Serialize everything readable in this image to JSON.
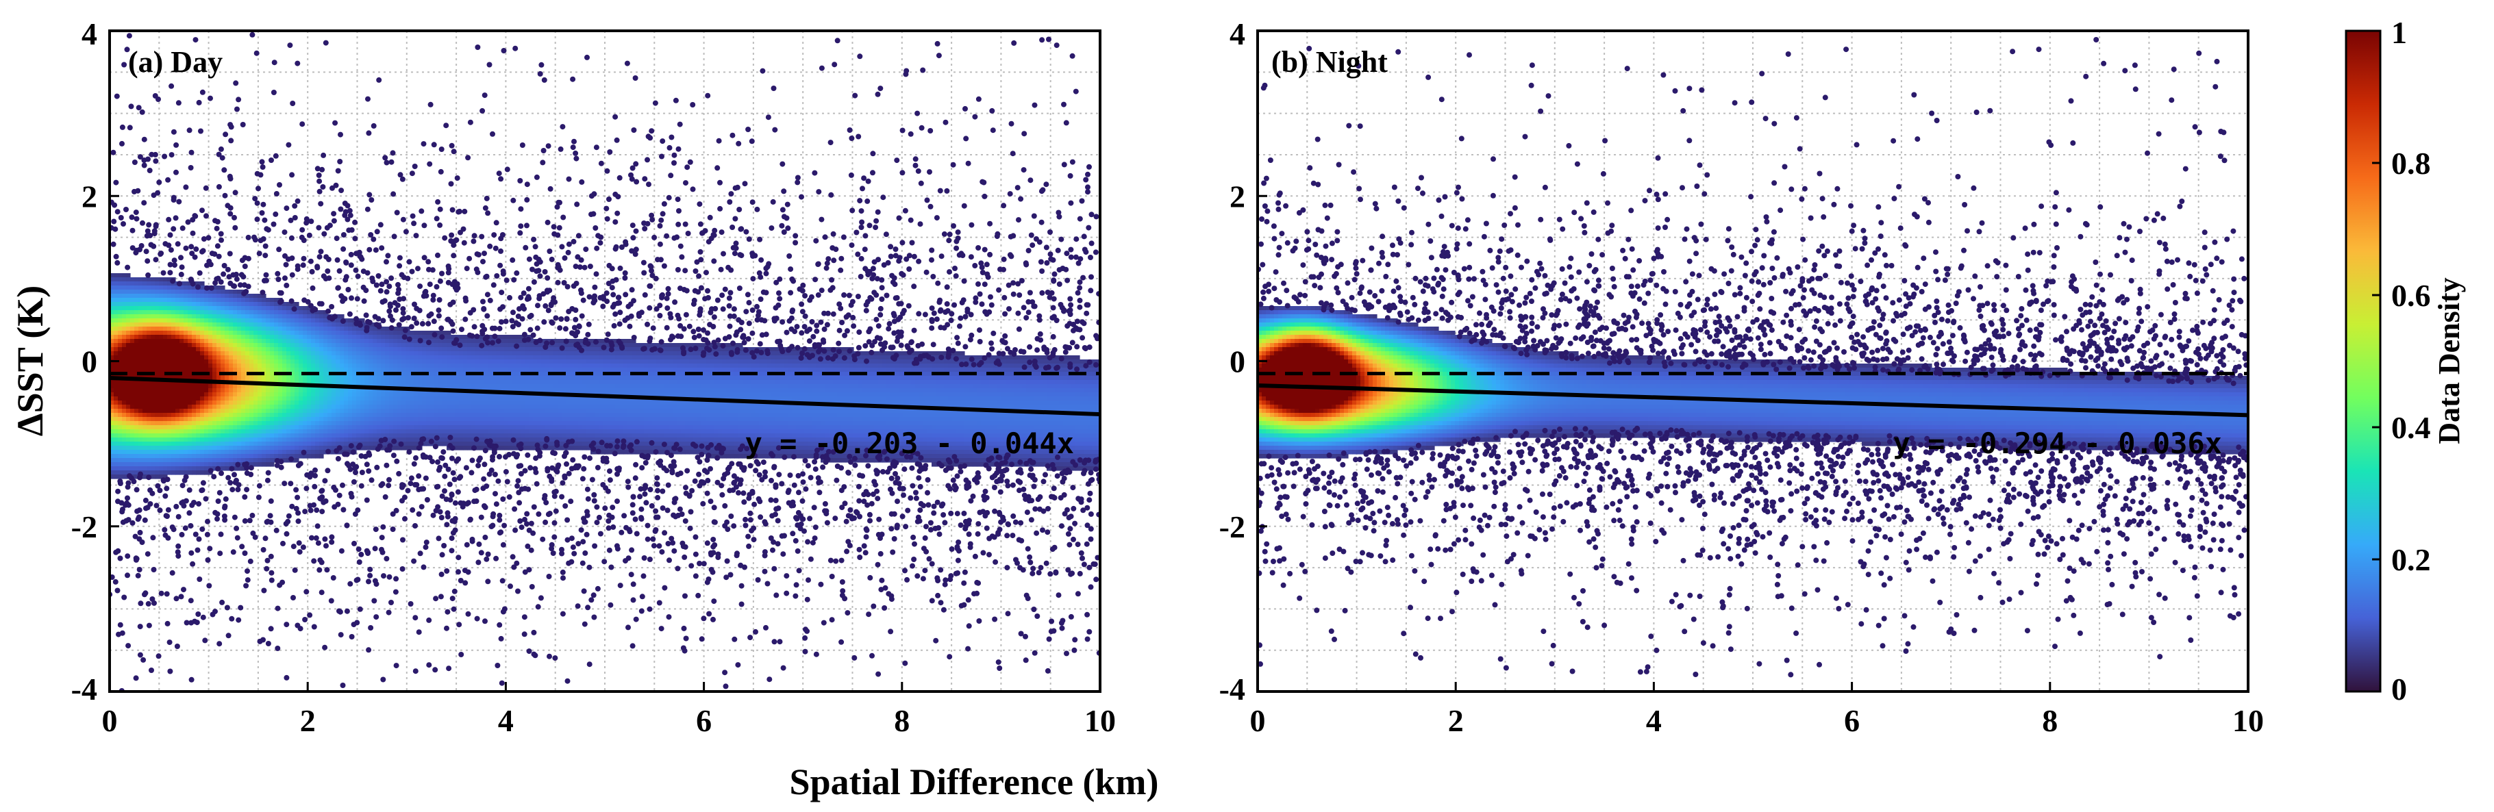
{
  "chart_data": [
    {
      "type": "scatter",
      "panel_label": "(a) Day",
      "xlabel": "Spatial Difference (km)",
      "ylabel": "ΔSST (K)",
      "xlim": [
        0,
        10
      ],
      "ylim": [
        -4,
        4
      ],
      "xticks": [
        "0",
        "2",
        "4",
        "6",
        "8",
        "10"
      ],
      "yticks": [
        "4",
        "2",
        "0",
        "-2",
        "-4"
      ],
      "grid": true,
      "reference_line_y": -0.15,
      "fit": {
        "intercept": -0.203,
        "slope": -0.044,
        "equation": "y = -0.203 - 0.044x"
      },
      "density_peak": {
        "x": 0.5,
        "y": -0.15
      },
      "spread_sd_near_zero": 0.9,
      "spread_sd_far": 0.7,
      "outlier_extent": [
        -3.9,
        3.9
      ]
    },
    {
      "type": "scatter",
      "panel_label": "(b) Night",
      "xlabel": "Spatial Difference (km)",
      "ylabel": "",
      "xlim": [
        0,
        10
      ],
      "ylim": [
        -4,
        4
      ],
      "xticks": [
        "0",
        "2",
        "4",
        "6",
        "8",
        "10"
      ],
      "yticks": [
        "4",
        "2",
        "0",
        "-2",
        "-4"
      ],
      "grid": true,
      "reference_line_y": -0.15,
      "fit": {
        "intercept": -0.294,
        "slope": -0.036,
        "equation": "y = -0.294 - 0.036x"
      },
      "density_peak": {
        "x": 0.5,
        "y": -0.15
      },
      "spread_sd_near_zero": 0.55,
      "spread_sd_far": 0.5,
      "outlier_extent": [
        -3.8,
        3.9
      ]
    }
  ],
  "shared_xlabel": "Spatial Difference (km)",
  "colorbar": {
    "label": "Data Density",
    "range": [
      0,
      1
    ],
    "ticks": [
      "1",
      "0.8",
      "0.6",
      "0.4",
      "0.2",
      "0"
    ],
    "colormap": "turbo",
    "stops": [
      "#30123b",
      "#4662d7",
      "#36aaf9",
      "#1ae4b6",
      "#72fe5e",
      "#c8ef34",
      "#faba39",
      "#f66b19",
      "#ca2a04",
      "#7a0403"
    ]
  },
  "colors": {
    "scatter_dark": "#2b1a6b",
    "fit_line": "#000000",
    "reference_line": "#000000",
    "grid": "#bdbdbd"
  }
}
